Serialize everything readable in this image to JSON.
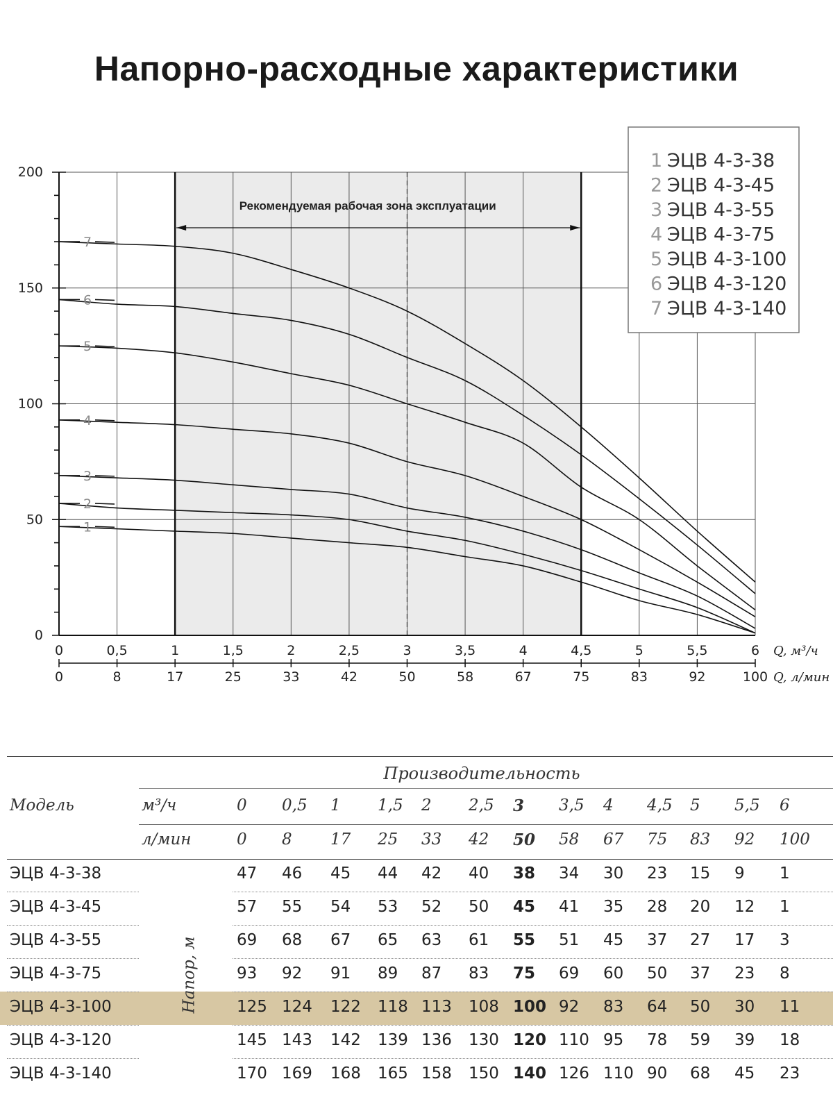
{
  "page": {
    "title": "Напорно-расходные характеристики"
  },
  "chart_data": {
    "type": "line",
    "title": "Напорно-расходные характеристики",
    "x_unit_m3h": "Q, м³/ч",
    "x_unit_lmin": "Q, л/мин",
    "x_ticks_m3h": [
      "0",
      "0,5",
      "1",
      "1,5",
      "2",
      "2,5",
      "3",
      "3,5",
      "4",
      "4,5",
      "5",
      "5,5",
      "6"
    ],
    "x_ticks_lmin": [
      "0",
      "8",
      "17",
      "25",
      "33",
      "42",
      "50",
      "58",
      "67",
      "75",
      "83",
      "92",
      "100"
    ],
    "x": [
      0,
      0.5,
      1,
      1.5,
      2,
      2.5,
      3,
      3.5,
      4,
      4.5,
      5,
      5.5,
      6
    ],
    "xlim": [
      0,
      6
    ],
    "ylim": [
      0,
      200
    ],
    "y_ticks": [
      "0",
      "50",
      "100",
      "150",
      "200"
    ],
    "zone": {
      "label": "Рекомендуемая рабочая зона эксплуатации",
      "from": 1,
      "to": 4.5,
      "optimal": 3
    },
    "series": [
      {
        "num": "1",
        "name": "ЭЦВ 4-3-38",
        "values": [
          47,
          46,
          45,
          44,
          42,
          40,
          38,
          34,
          30,
          23,
          15,
          9,
          1
        ]
      },
      {
        "num": "2",
        "name": "ЭЦВ 4-3-45",
        "values": [
          57,
          55,
          54,
          53,
          52,
          50,
          45,
          41,
          35,
          28,
          20,
          12,
          1
        ]
      },
      {
        "num": "3",
        "name": "ЭЦВ 4-3-55",
        "values": [
          69,
          68,
          67,
          65,
          63,
          61,
          55,
          51,
          45,
          37,
          27,
          17,
          3
        ]
      },
      {
        "num": "4",
        "name": "ЭЦВ 4-3-75",
        "values": [
          93,
          92,
          91,
          89,
          87,
          83,
          75,
          69,
          60,
          50,
          37,
          23,
          8
        ]
      },
      {
        "num": "5",
        "name": "ЭЦВ 4-3-100",
        "values": [
          125,
          124,
          122,
          118,
          113,
          108,
          100,
          92,
          83,
          64,
          50,
          30,
          11
        ]
      },
      {
        "num": "6",
        "name": "ЭЦВ 4-3-120",
        "values": [
          145,
          143,
          142,
          139,
          136,
          130,
          120,
          110,
          95,
          78,
          59,
          39,
          18
        ]
      },
      {
        "num": "7",
        "name": "ЭЦВ 4-3-140",
        "values": [
          170,
          169,
          168,
          165,
          158,
          150,
          140,
          126,
          110,
          90,
          68,
          45,
          23
        ]
      }
    ]
  },
  "table": {
    "header_main": "Производительность",
    "header_model": "Модель",
    "unit_m3h": "м³/ч",
    "unit_lmin": "л/мин",
    "head_label": "Напор, м",
    "cols_m3h": [
      "0",
      "0,5",
      "1",
      "1,5",
      "2",
      "2,5",
      "3",
      "3,5",
      "4",
      "4,5",
      "5",
      "5,5",
      "6"
    ],
    "cols_lmin": [
      "0",
      "8",
      "17",
      "25",
      "33",
      "42",
      "50",
      "58",
      "67",
      "75",
      "83",
      "92",
      "100"
    ],
    "bold_col": 6,
    "highlight_row": 4,
    "highlight_color": "#d7c7a3",
    "rows": [
      {
        "model": "ЭЦВ 4-3-38",
        "values": [
          "47",
          "46",
          "45",
          "44",
          "42",
          "40",
          "38",
          "34",
          "30",
          "23",
          "15",
          "9",
          "1"
        ]
      },
      {
        "model": "ЭЦВ 4-3-45",
        "values": [
          "57",
          "55",
          "54",
          "53",
          "52",
          "50",
          "45",
          "41",
          "35",
          "28",
          "20",
          "12",
          "1"
        ]
      },
      {
        "model": "ЭЦВ 4-3-55",
        "values": [
          "69",
          "68",
          "67",
          "65",
          "63",
          "61",
          "55",
          "51",
          "45",
          "37",
          "27",
          "17",
          "3"
        ]
      },
      {
        "model": "ЭЦВ 4-3-75",
        "values": [
          "93",
          "92",
          "91",
          "89",
          "87",
          "83",
          "75",
          "69",
          "60",
          "50",
          "37",
          "23",
          "8"
        ]
      },
      {
        "model": "ЭЦВ 4-3-100",
        "values": [
          "125",
          "124",
          "122",
          "118",
          "113",
          "108",
          "100",
          "92",
          "83",
          "64",
          "50",
          "30",
          "11"
        ]
      },
      {
        "model": "ЭЦВ 4-3-120",
        "values": [
          "145",
          "143",
          "142",
          "139",
          "136",
          "130",
          "120",
          "110",
          "95",
          "78",
          "59",
          "39",
          "18"
        ]
      },
      {
        "model": "ЭЦВ 4-3-140",
        "values": [
          "170",
          "169",
          "168",
          "165",
          "158",
          "150",
          "140",
          "126",
          "110",
          "90",
          "68",
          "45",
          "23"
        ]
      }
    ]
  }
}
